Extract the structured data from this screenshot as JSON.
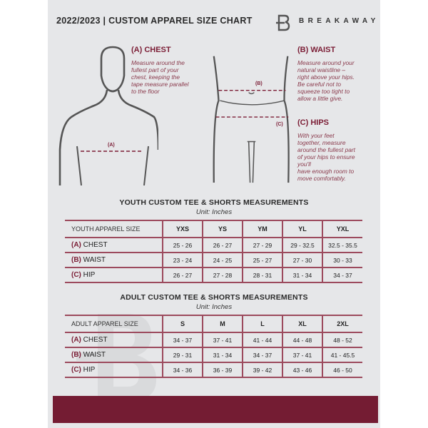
{
  "header": {
    "title": "2022/2023  |  CUSTOM APPAREL SIZE CHART",
    "brand": "BREAKAWAY",
    "logo_letter": "B"
  },
  "chest": {
    "heading": "(A) CHEST",
    "text": "Measure around the\nfullest part of your\nchest, keeping the\ntape measure parallel\nto the floor",
    "marker": "(A)"
  },
  "waist": {
    "heading": "(B) WAIST",
    "text": "Measure around your\nnatural waistline –\nright above your hips.\nBe careful not to\nsqueeze too tight to\nallow a little give.",
    "marker": "(B)"
  },
  "hips": {
    "heading": "(C) HIPS",
    "text": "With your feet\ntogether, measure\naround the fullest part\nof your hips to ensure\nyou'll\nhave enough room to\nmove comfortably.",
    "marker": "(C)"
  },
  "youth": {
    "title": "YOUTH CUSTOM TEE & SHORTS MEASUREMENTS",
    "unit": "Unit: Inches",
    "header": "YOUTH APPAREL SIZE",
    "sizes": [
      "YXS",
      "YS",
      "YM",
      "YL",
      "YXL"
    ],
    "rows": [
      {
        "letter": "(A)",
        "name": "CHEST",
        "values": [
          "25 - 26",
          "26 - 27",
          "27 - 29",
          "29 - 32.5",
          "32.5 - 35.5"
        ]
      },
      {
        "letter": "(B)",
        "name": "WAIST",
        "values": [
          "23 - 24",
          "24 - 25",
          "25 - 27",
          "27 - 30",
          "30 - 33"
        ]
      },
      {
        "letter": "(C)",
        "name": "HIP",
        "values": [
          "26 - 27",
          "27 - 28",
          "28 - 31",
          "31 - 34",
          "34 - 37"
        ]
      }
    ]
  },
  "adult": {
    "title": "ADULT CUSTOM TEE & SHORTS MEASUREMENTS",
    "unit": "Unit: Inches",
    "header": "ADULT APPAREL SIZE",
    "sizes": [
      "S",
      "M",
      "L",
      "XL",
      "2XL"
    ],
    "rows": [
      {
        "letter": "(A)",
        "name": "CHEST",
        "values": [
          "34 - 37",
          "37 - 41",
          "41 - 44",
          "44 - 48",
          "48 - 52"
        ]
      },
      {
        "letter": "(B)",
        "name": "WAIST",
        "values": [
          "29 - 31",
          "31 - 34",
          "34 - 37",
          "37 - 41",
          "41 - 45.5"
        ]
      },
      {
        "letter": "(C)",
        "name": "HIP",
        "values": [
          "34 - 36",
          "36 - 39",
          "39 - 42",
          "43 - 46",
          "46 - 50"
        ]
      }
    ]
  },
  "watermark": "B",
  "colors": {
    "accent": "#7b1d35",
    "band": "#741c33",
    "page": "#e6e7e9"
  }
}
